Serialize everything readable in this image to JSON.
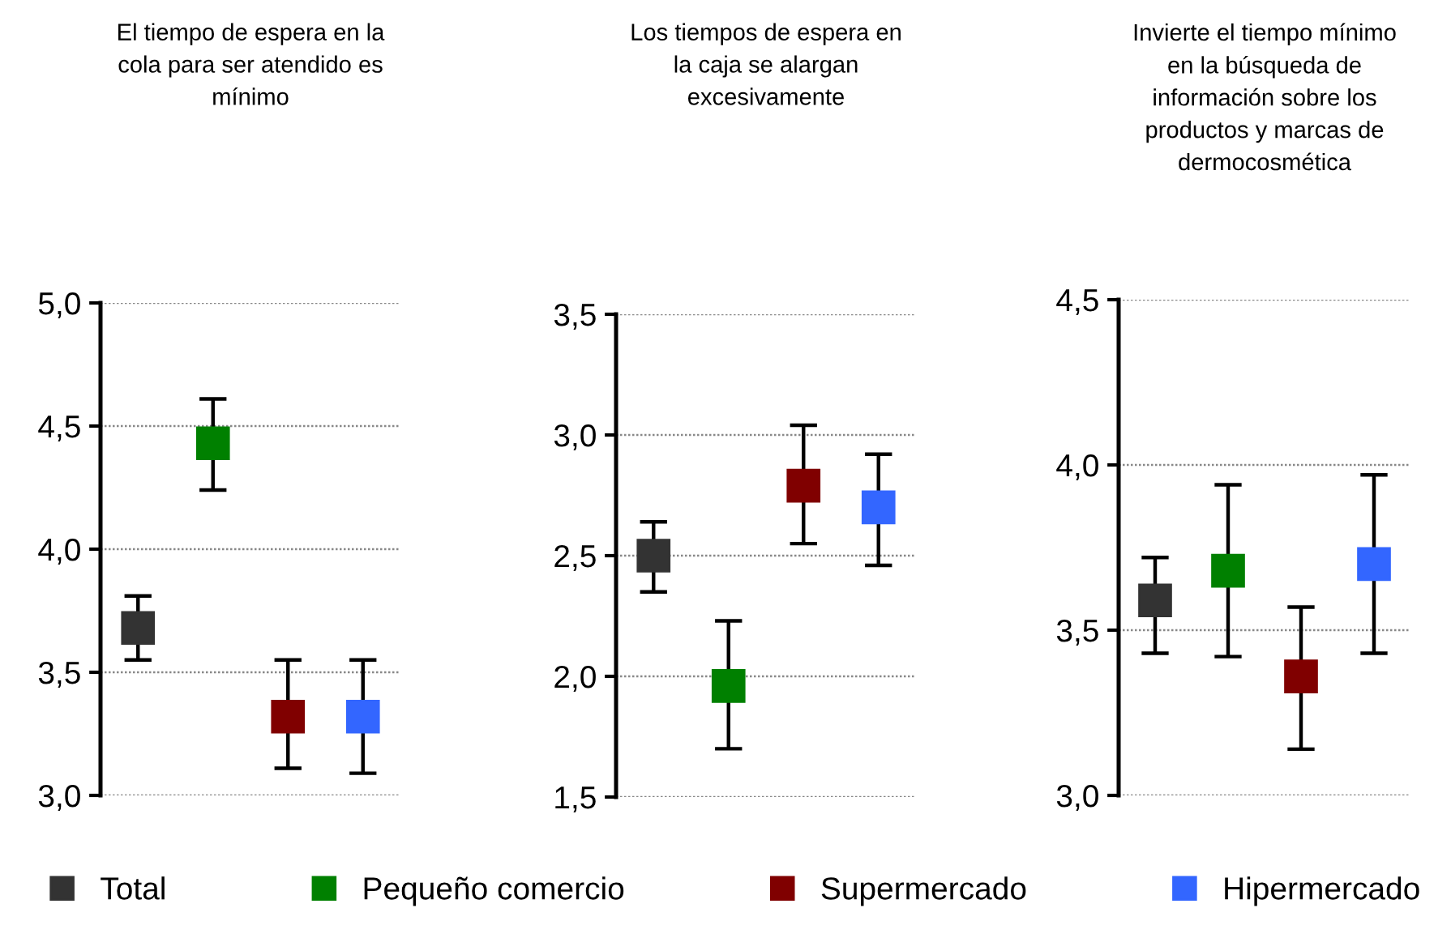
{
  "chart_data": [
    {
      "type": "scatter",
      "title": "El tiempo de espera en la\ncola para ser atendido es\nmínimo",
      "categories": [
        null,
        null,
        null,
        null
      ],
      "ylim": [
        3.0,
        5.0
      ],
      "yticks": [
        {
          "value": 3.0,
          "label": "3,0"
        },
        {
          "value": 3.5,
          "label": "3,5"
        },
        {
          "value": 4.0,
          "label": "4,0"
        },
        {
          "value": 4.5,
          "label": "4,5"
        },
        {
          "value": 5.0,
          "label": "5,0"
        }
      ],
      "grid": "y",
      "marker": "square",
      "legend": "bottom",
      "series": [
        {
          "name": "Total",
          "color": "#333333",
          "values": [
            3.68,
            null,
            null,
            null
          ],
          "errors": [
            [
              3.55,
              3.81
            ],
            null,
            null,
            null
          ]
        },
        {
          "name": "Pequeño comercio",
          "color": "#008000",
          "values": [
            null,
            4.43,
            null,
            null
          ],
          "errors": [
            null,
            [
              4.24,
              4.61
            ],
            null,
            null
          ]
        },
        {
          "name": "Supermercado",
          "color": "#800000",
          "values": [
            null,
            null,
            3.32,
            null
          ],
          "errors": [
            null,
            null,
            [
              3.11,
              3.55
            ],
            null
          ]
        },
        {
          "name": "Hipermercado",
          "color": "#3366ff",
          "values": [
            null,
            null,
            null,
            3.32
          ],
          "errors": [
            null,
            null,
            null,
            [
              3.09,
              3.55
            ]
          ]
        }
      ]
    },
    {
      "type": "scatter",
      "title": "Los tiempos de espera en\nla caja se alargan\nexcesivamente",
      "categories": [
        null,
        null,
        null,
        null
      ],
      "ylim": [
        1.5,
        3.5
      ],
      "yticks": [
        {
          "value": 1.5,
          "label": "1,5"
        },
        {
          "value": 2.0,
          "label": "2,0"
        },
        {
          "value": 2.5,
          "label": "2,5"
        },
        {
          "value": 3.0,
          "label": "3,0"
        },
        {
          "value": 3.5,
          "label": "3,5"
        }
      ],
      "grid": "y",
      "marker": "square",
      "series": [
        {
          "color": "#333333",
          "values": [
            2.5,
            null,
            null,
            null
          ],
          "errors": [
            [
              2.35,
              2.64
            ],
            null,
            null,
            null
          ]
        },
        {
          "color": "#008000",
          "values": [
            null,
            1.96,
            null,
            null
          ],
          "errors": [
            null,
            [
              1.7,
              2.23
            ],
            null,
            null
          ]
        },
        {
          "color": "#800000",
          "values": [
            null,
            null,
            2.79,
            null
          ],
          "errors": [
            null,
            null,
            [
              2.55,
              3.04
            ],
            null
          ]
        },
        {
          "color": "#3366ff",
          "values": [
            null,
            null,
            null,
            2.7
          ],
          "errors": [
            null,
            null,
            null,
            [
              2.46,
              2.92
            ]
          ]
        }
      ]
    },
    {
      "type": "scatter",
      "title": "Invierte el tiempo mínimo\nen la búsqueda de\ninformación sobre los\nproductos y marcas de\ndermocosmética",
      "categories": [
        null,
        null,
        null,
        null
      ],
      "ylim": [
        3.0,
        4.5
      ],
      "yticks": [
        {
          "value": 3.0,
          "label": "3,0"
        },
        {
          "value": 3.5,
          "label": "3,5"
        },
        {
          "value": 4.0,
          "label": "4,0"
        },
        {
          "value": 4.5,
          "label": "4,5"
        }
      ],
      "grid": "y",
      "marker": "square",
      "series": [
        {
          "color": "#333333",
          "values": [
            3.59,
            null,
            null,
            null
          ],
          "errors": [
            [
              3.43,
              3.72
            ],
            null,
            null,
            null
          ]
        },
        {
          "color": "#008000",
          "values": [
            null,
            3.68,
            null,
            null
          ],
          "errors": [
            null,
            [
              3.42,
              3.94
            ],
            null,
            null
          ]
        },
        {
          "color": "#800000",
          "values": [
            null,
            null,
            3.36,
            null
          ],
          "errors": [
            null,
            null,
            [
              3.14,
              3.57
            ],
            null
          ]
        },
        {
          "color": "#3366ff",
          "values": [
            null,
            null,
            null,
            3.7
          ],
          "errors": [
            null,
            null,
            null,
            [
              3.43,
              3.97
            ]
          ]
        }
      ]
    }
  ]
}
